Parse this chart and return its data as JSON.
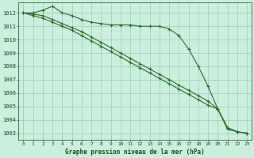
{
  "title": "Graphe pression niveau de la mer (hPa)",
  "hours": [
    0,
    1,
    2,
    3,
    4,
    5,
    6,
    7,
    8,
    9,
    10,
    11,
    12,
    13,
    14,
    15,
    16,
    17,
    18,
    19,
    20,
    21,
    22,
    23
  ],
  "line1": [
    1012.0,
    1012.0,
    1012.2,
    1012.5,
    1012.0,
    1011.8,
    1011.5,
    1011.3,
    1011.2,
    1011.1,
    1011.1,
    1011.1,
    1011.0,
    1011.0,
    1011.0,
    1010.8,
    1010.3,
    1009.3,
    1008.0,
    1006.5,
    1004.8,
    1003.3,
    1003.1,
    null
  ],
  "line2": [
    1012.0,
    1011.9,
    1011.8,
    1011.5,
    1011.2,
    1010.9,
    1010.6,
    1010.2,
    1009.8,
    1009.4,
    1009.0,
    1008.6,
    1008.2,
    1007.8,
    1007.4,
    1007.0,
    1006.6,
    1006.2,
    1005.8,
    1005.4,
    1004.8,
    1003.4,
    1003.1,
    1003.0
  ],
  "line3": [
    1012.0,
    1011.8,
    1011.6,
    1011.3,
    1011.0,
    1010.7,
    1010.3,
    1009.9,
    1009.5,
    1009.1,
    1008.7,
    1008.3,
    1007.9,
    1007.5,
    1007.1,
    1006.7,
    1006.3,
    1005.9,
    1005.5,
    1005.1,
    1004.8,
    1003.4,
    1003.1,
    1003.0
  ],
  "line_color": "#2d6a2d",
  "bg_color": "#cceedd",
  "grid_color": "#99ccbb",
  "yticks": [
    1003,
    1004,
    1005,
    1006,
    1007,
    1008,
    1009,
    1010,
    1011,
    1012
  ],
  "text_color": "#1a4a1a"
}
